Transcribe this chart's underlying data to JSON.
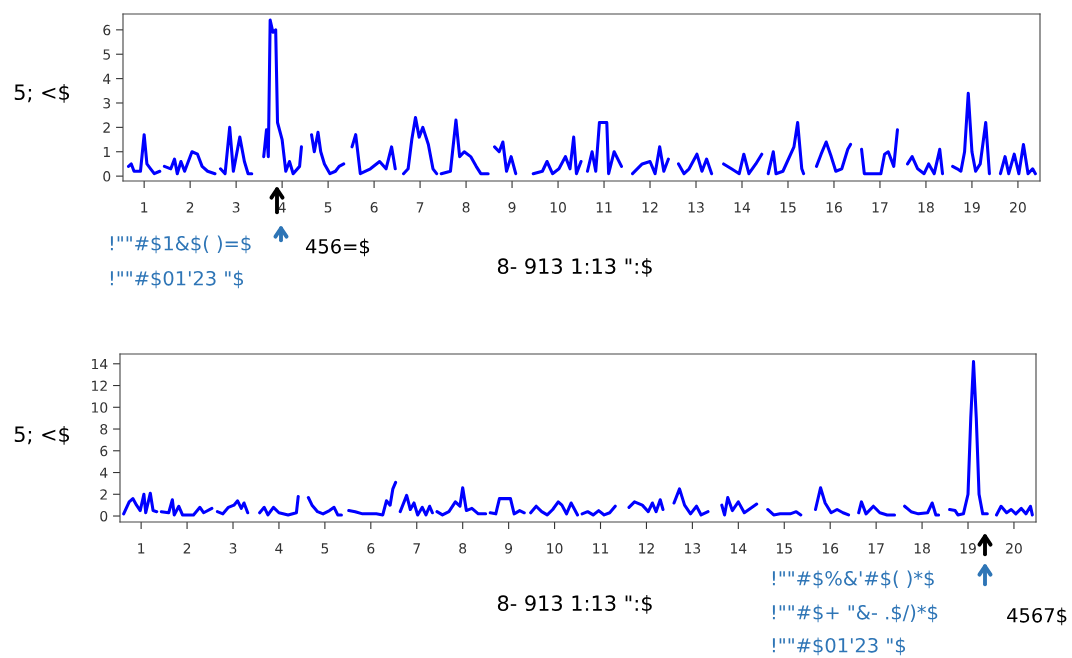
{
  "chart_data": [
    {
      "type": "line",
      "ylabel": "5; <$",
      "xlabel": "8- 913 1:13 \":$",
      "xlim": [
        0.54,
        20.48
      ],
      "ylim": [
        -0.2,
        6.65
      ],
      "yticks": [
        0,
        1,
        2,
        3,
        4,
        5,
        6
      ],
      "xticks": [
        1,
        2,
        3,
        4,
        5,
        6,
        7,
        8,
        9,
        10,
        11,
        12,
        13,
        14,
        15,
        16,
        17,
        18,
        19,
        20
      ],
      "grid": false,
      "annotations": [
        "!\"\"#$1&$( )=$",
        "!\"\"#$01'23 \"$",
        "456=$"
      ],
      "series": [
        {
          "color": "#0000ff",
          "x": [
            0.66,
            0.72,
            0.78,
            0.92,
            1.0,
            1.06,
            1.14,
            1.22,
            1.34,
            1.4,
            1.44,
            1.58,
            1.66,
            1.72,
            1.8,
            1.88,
            2.04,
            2.16,
            2.26,
            2.38,
            2.54,
            2.62,
            2.66,
            2.76,
            2.86,
            2.94,
            3.08,
            3.18,
            3.26,
            3.34,
            3.42,
            3.6,
            3.66,
            3.7,
            3.74,
            3.8,
            3.86,
            3.9,
            4.0,
            4.08,
            4.16,
            4.24,
            4.38,
            4.42,
            4.52,
            4.64,
            4.7,
            4.78,
            4.84,
            4.92,
            5.04,
            5.16,
            5.24,
            5.34,
            5.42,
            5.52,
            5.6,
            5.7,
            5.92,
            6.12,
            6.26,
            6.38,
            6.46,
            6.56,
            6.64,
            6.74,
            6.82,
            6.9,
            6.98,
            7.06,
            7.18,
            7.28,
            7.36,
            7.44,
            7.46,
            7.66,
            7.78,
            7.86,
            7.96,
            8.1,
            8.22,
            8.32,
            8.48,
            8.56,
            8.62,
            8.72,
            8.8,
            8.88,
            8.98,
            9.08,
            9.2,
            9.46,
            9.66,
            9.76,
            9.88,
            10.02,
            10.16,
            10.26,
            10.34,
            10.4,
            10.5,
            10.56,
            10.64,
            10.74,
            10.82,
            10.9,
            11.06,
            11.1,
            11.22,
            11.38,
            11.5,
            11.62,
            11.83,
            12.0,
            12.11,
            12.21,
            12.3,
            12.4,
            12.5,
            12.62,
            12.74,
            12.85,
            13.02,
            13.13,
            13.23,
            13.34,
            13.46,
            13.6,
            13.77,
            13.94,
            14.04,
            14.15,
            14.3,
            14.43,
            14.52,
            14.57,
            14.68,
            14.74,
            14.89,
            15.13,
            15.21,
            15.3,
            15.34,
            15.45,
            15.62,
            15.72,
            15.83,
            15.94,
            16.04,
            16.17,
            16.3,
            16.36,
            16.46,
            16.6,
            16.66,
            17.02,
            17.1,
            17.18,
            17.3,
            17.38,
            17.48,
            17.6,
            17.7,
            17.82,
            17.96,
            18.06,
            18.18,
            18.3,
            18.36,
            18.48,
            18.58,
            18.68,
            18.76,
            18.84,
            18.92,
            19.0,
            19.08,
            19.18,
            19.3,
            19.38,
            19.5,
            19.62,
            19.72,
            19.8,
            19.92,
            20.02,
            20.12,
            20.22,
            20.32,
            20.38
          ],
          "values": [
            0.4,
            0.5,
            0.2,
            0.2,
            1.7,
            0.5,
            0.3,
            0.1,
            0.2,
            null,
            0.4,
            0.3,
            0.7,
            0.1,
            0.6,
            0.2,
            1.0,
            0.9,
            0.4,
            0.2,
            0.1,
            null,
            0.3,
            0.1,
            2.0,
            0.2,
            1.6,
            0.6,
            0.1,
            0.1,
            null,
            0.8,
            1.9,
            0.8,
            6.4,
            5.9,
            6.0,
            2.2,
            1.5,
            0.2,
            0.6,
            0.1,
            0.4,
            1.2,
            null,
            1.7,
            1.0,
            1.8,
            1.0,
            0.5,
            0.1,
            0.2,
            0.4,
            0.5,
            null,
            1.2,
            1.7,
            0.1,
            0.3,
            0.6,
            0.3,
            1.2,
            0.3,
            null,
            0.1,
            0.3,
            1.5,
            2.4,
            1.6,
            2.0,
            1.3,
            0.3,
            0.1,
            null,
            0.1,
            0.2,
            2.3,
            0.8,
            1.0,
            0.8,
            0.4,
            0.1,
            0.1,
            null,
            1.2,
            1.0,
            1.4,
            0.2,
            0.8,
            0.1,
            null,
            0.1,
            0.2,
            0.6,
            0.1,
            0.3,
            0.8,
            0.3,
            1.6,
            0.1,
            0.6,
            null,
            0.2,
            1.0,
            0.2,
            2.2,
            2.2,
            0.1,
            1.0,
            0.4,
            null,
            0.1,
            0.5,
            0.6,
            0.1,
            1.2,
            0.2,
            0.7,
            null,
            0.5,
            0.1,
            0.3,
            0.9,
            0.2,
            0.7,
            0.1,
            null,
            0.5,
            0.3,
            0.1,
            0.9,
            0.1,
            0.5,
            0.9,
            null,
            0.1,
            1.0,
            0.1,
            0.2,
            1.2,
            2.2,
            0.3,
            0.1,
            null,
            0.4,
            0.9,
            1.4,
            0.8,
            0.2,
            0.3,
            1.1,
            1.3,
            null,
            1.1,
            0.1,
            0.1,
            0.9,
            1.0,
            0.4,
            1.9,
            null,
            0.5,
            0.8,
            0.3,
            0.1,
            0.5,
            0.1,
            1.1,
            0.1,
            null,
            0.4,
            0.3,
            0.2,
            1.0,
            3.4,
            1.0,
            0.2,
            0.5,
            2.2,
            0.1,
            null,
            0.1,
            0.8,
            0.1,
            0.9,
            0.1,
            1.3,
            0.1,
            0.3,
            0.1
          ]
        }
      ]
    },
    {
      "type": "line",
      "ylabel": "5; <$",
      "xlabel": "8- 913 1:13 \":$",
      "xlim": [
        0.54,
        20.48
      ],
      "ylim": [
        -0.55,
        14.9
      ],
      "yticks": [
        0,
        2,
        4,
        6,
        8,
        10,
        12,
        14
      ],
      "xticks": [
        1,
        2,
        3,
        4,
        5,
        6,
        7,
        8,
        9,
        10,
        11,
        12,
        13,
        14,
        15,
        16,
        17,
        18,
        19,
        20
      ],
      "grid": false,
      "annotations": [
        "!\"\"#$%&'#$( )*$",
        "!\"\"#$+ \"&- .$/)*$",
        "!\"\"#$01'23 \"$",
        "4567$"
      ],
      "series": [
        {
          "color": "#0000ff",
          "x": [
            0.62,
            0.74,
            0.82,
            0.9,
            0.98,
            1.06,
            1.1,
            1.2,
            1.26,
            1.34,
            1.4,
            1.44,
            1.6,
            1.68,
            1.72,
            1.82,
            1.9,
            2.14,
            2.28,
            2.36,
            2.54,
            2.62,
            2.66,
            2.78,
            2.9,
            3.02,
            3.1,
            3.18,
            3.24,
            3.32,
            3.42,
            3.58,
            3.68,
            3.76,
            3.88,
            4.0,
            4.2,
            4.38,
            4.42,
            4.52,
            4.64,
            4.72,
            4.84,
            4.96,
            5.1,
            5.2,
            5.28,
            5.36,
            5.44,
            5.52,
            5.66,
            5.82,
            6.12,
            6.26,
            6.34,
            6.42,
            6.48,
            6.54,
            6.58,
            6.64,
            6.78,
            6.86,
            6.94,
            7.02,
            7.12,
            7.2,
            7.28,
            7.34,
            7.4,
            7.44,
            7.56,
            7.7,
            7.84,
            7.94,
            8.0,
            8.08,
            8.2,
            8.34,
            8.5,
            8.56,
            8.6,
            8.72,
            8.8,
            9.04,
            9.12,
            9.24,
            9.34,
            9.4,
            9.48,
            9.6,
            9.72,
            9.84,
            9.96,
            10.08,
            10.16,
            10.26,
            10.36,
            10.5,
            10.56,
            10.6,
            10.72,
            10.84,
            10.96,
            11.08,
            11.2,
            11.32,
            11.46,
            11.62,
            11.74,
            11.91,
            12.04,
            12.13,
            12.21,
            12.3,
            12.36,
            12.48,
            12.6,
            12.72,
            12.83,
            12.96,
            13.09,
            13.19,
            13.34,
            13.46,
            13.64,
            13.7,
            13.77,
            13.87,
            14.0,
            14.13,
            14.3,
            14.4,
            14.52,
            14.64,
            14.77,
            14.91,
            15.13,
            15.26,
            15.36,
            15.48,
            15.68,
            15.79,
            15.89,
            16.02,
            16.15,
            16.28,
            16.4,
            16.5,
            16.62,
            16.68,
            16.78,
            16.94,
            17.08,
            17.24,
            17.4,
            17.5,
            17.62,
            17.76,
            17.92,
            18.12,
            18.22,
            18.3,
            18.36,
            18.48,
            18.6,
            18.72,
            18.78,
            18.9,
            19.0,
            19.06,
            19.12,
            19.18,
            19.24,
            19.32,
            19.42,
            19.52,
            19.62,
            19.72,
            19.84,
            19.94,
            20.04,
            20.16,
            20.26,
            20.36,
            20.4
          ],
          "values": [
            0.2,
            1.3,
            1.6,
            1.0,
            0.5,
            2.0,
            0.3,
            2.1,
            0.5,
            0.4,
            null,
            0.4,
            0.3,
            1.5,
            0.1,
            0.9,
            0.1,
            0.1,
            0.8,
            0.3,
            0.7,
            null,
            0.4,
            0.2,
            0.8,
            1.0,
            1.4,
            0.7,
            1.2,
            0.3,
            null,
            0.3,
            0.8,
            0.1,
            0.8,
            0.3,
            0.1,
            0.3,
            1.8,
            null,
            1.7,
            1.0,
            0.4,
            0.2,
            0.5,
            0.8,
            0.1,
            0.1,
            null,
            0.5,
            0.4,
            0.2,
            0.2,
            0.1,
            1.4,
            1.0,
            2.5,
            3.1,
            null,
            0.4,
            1.9,
            0.6,
            1.2,
            0.1,
            0.8,
            0.1,
            0.9,
            0.3,
            null,
            0.4,
            0.1,
            0.4,
            1.3,
            0.9,
            2.6,
            0.5,
            0.7,
            0.2,
            0.2,
            null,
            0.3,
            0.2,
            1.6,
            1.6,
            0.2,
            0.5,
            0.3,
            null,
            0.3,
            0.9,
            0.4,
            0.1,
            0.6,
            1.3,
            1.0,
            0.2,
            1.2,
            0.1,
            null,
            0.2,
            0.4,
            0.1,
            0.5,
            0.1,
            0.3,
            0.9,
            null,
            0.8,
            1.3,
            1.0,
            0.4,
            1.2,
            0.4,
            1.5,
            0.6,
            null,
            1.2,
            2.5,
            1.0,
            0.2,
            0.9,
            0.1,
            0.4,
            null,
            1.0,
            0.1,
            1.7,
            0.5,
            1.3,
            0.3,
            0.8,
            1.1,
            null,
            0.6,
            0.1,
            0.2,
            0.2,
            0.4,
            0.1,
            null,
            0.6,
            2.6,
            1.2,
            0.3,
            0.6,
            0.3,
            0.1,
            null,
            0.3,
            1.3,
            0.2,
            0.9,
            0.3,
            0.1,
            0.1,
            null,
            0.9,
            0.4,
            0.2,
            0.3,
            1.2,
            0.1,
            0.1,
            null,
            0.6,
            0.5,
            0.1,
            0.2,
            2.0,
            9.0,
            14.2,
            9.0,
            2.0,
            0.2,
            0.2,
            null,
            0.1,
            0.9,
            0.3,
            0.6,
            0.2,
            0.7,
            0.2,
            0.9,
            0.1
          ]
        }
      ]
    }
  ]
}
